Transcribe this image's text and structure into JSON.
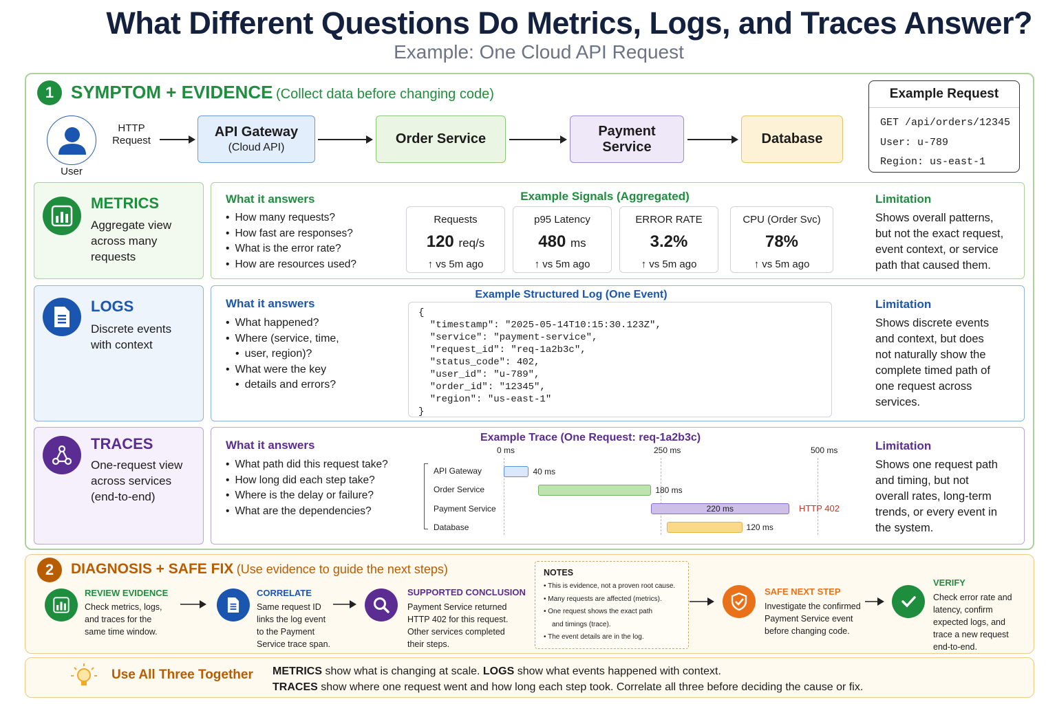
{
  "header": {
    "title": "What Different Questions Do Metrics, Logs, and Traces Answer?",
    "subtitle": "Example: One Cloud API Request"
  },
  "section1": {
    "number": "1",
    "title": "SYMPTOM + EVIDENCE",
    "subtitle": "(Collect data before changing code)"
  },
  "flow": {
    "user": "User",
    "http": "HTTP",
    "request": "Request",
    "gateway": "API Gateway",
    "gateway_sub": "(Cloud API)",
    "order": "Order Service",
    "payment": "Payment",
    "payment2": "Service",
    "database": "Database"
  },
  "example_request": {
    "title": "Example Request",
    "line1": "GET /api/orders/12345",
    "line2": "User: u-789",
    "line3": "Region: us-east-1"
  },
  "metrics": {
    "title": "METRICS",
    "desc": [
      "Aggregate view",
      "across many",
      "requests"
    ],
    "answers_title": "What it answers",
    "answers": [
      "How many requests?",
      "How fast are responses?",
      "What is the error rate?",
      "How are resources used?"
    ],
    "signals_title": "Example Signals (Aggregated)",
    "cards": [
      {
        "label": "Requests",
        "value": "120",
        "unit": "req/s",
        "delta": "↑ vs 5m ago"
      },
      {
        "label": "p95 Latency",
        "value": "480",
        "unit": "ms",
        "delta": "↑ vs 5m ago"
      },
      {
        "label": "ERROR RATE",
        "value": "3.2%",
        "unit": "",
        "delta": "↑ vs 5m ago"
      },
      {
        "label": "CPU (Order Svc)",
        "value": "78%",
        "unit": "",
        "delta": "↑ vs 5m ago"
      }
    ],
    "limitation_title": "Limitation",
    "limitation": [
      "Shows overall patterns,",
      "but not the exact request,",
      "event context, or service",
      "path that caused them."
    ],
    "icon": "bar-chart-icon"
  },
  "logs": {
    "title": "LOGS",
    "desc": [
      "Discrete events",
      "with context"
    ],
    "answers_title": "What it answers",
    "answers": [
      "What happened?",
      "Where (service, time,",
      "user, region)?",
      "What were the key",
      "details and errors?"
    ],
    "log_title": "Example Structured Log (One Event)",
    "log_lines": [
      "{",
      "  \"timestamp\": \"2025-05-14T10:15:30.123Z\",",
      "  \"service\": \"payment-service\",",
      "  \"request_id\": \"req-1a2b3c\",",
      "  \"status_code\": 402,",
      "  \"user_id\": \"u-789\",",
      "  \"order_id\": \"12345\",",
      "  \"region\": \"us-east-1\"",
      "}"
    ],
    "limitation_title": "Limitation",
    "limitation": [
      "Shows discrete events",
      "and context, but does",
      "not naturally show the",
      "complete timed path of",
      "one request across",
      "services."
    ],
    "icon": "document-icon"
  },
  "traces": {
    "title": "TRACES",
    "desc": [
      "One-request view",
      "across services",
      "(end-to-end)"
    ],
    "answers_title": "What it answers",
    "answers": [
      "What path did this request take?",
      "How long did each step take?",
      "Where is the delay or failure?",
      "What are the dependencies?"
    ],
    "trace_title": "Example Trace (One Request: req-1a2b3c)",
    "ticks": [
      "0 ms",
      "250 ms",
      "500 ms"
    ],
    "spans": [
      {
        "name": "API Gateway",
        "start": 0,
        "duration": 40,
        "label": "40 ms",
        "color": "#dbe8fb",
        "border": "#5b8fd6"
      },
      {
        "name": "Order Service",
        "start": 55,
        "duration": 180,
        "label": "180 ms",
        "color": "#bfe3b0",
        "border": "#6fb160"
      },
      {
        "name": "Payment Service",
        "start": 235,
        "duration": 220,
        "label": "220 ms",
        "color": "#cdbfe8",
        "border": "#8a6fc9",
        "status": "HTTP 402"
      },
      {
        "name": "Database",
        "start": 260,
        "duration": 120,
        "label": "120 ms",
        "color": "#fbd98a",
        "border": "#e3b34a"
      }
    ],
    "limitation_title": "Limitation",
    "limitation": [
      "Shows one request path",
      "and timing, but not",
      "overall rates, long-term",
      "trends, or every event in",
      "the system."
    ],
    "icon": "network-icon"
  },
  "section2": {
    "number": "2",
    "title": "DIAGNOSIS + SAFE FIX",
    "subtitle": "(Use evidence to guide the next steps)"
  },
  "steps": {
    "review": {
      "title": "REVIEW EVIDENCE",
      "lines": [
        "Check metrics, logs,",
        "and traces for the",
        "same time window."
      ]
    },
    "correlate": {
      "title": "CORRELATE",
      "lines": [
        "Same request ID",
        "links the log event",
        "to the Payment",
        "Service trace span."
      ]
    },
    "conclusion": {
      "title": "SUPPORTED CONCLUSION",
      "lines": [
        "Payment Service returned",
        "HTTP 402 for this request.",
        "Other services completed",
        "their steps."
      ]
    },
    "notes": {
      "title": "NOTES",
      "lines": [
        "This is evidence, not a proven root cause.",
        "Many requests are affected (metrics).",
        "One request shows the exact path",
        "and timings (trace).",
        "The event details are in the log."
      ]
    },
    "safe": {
      "title": "SAFE NEXT STEP",
      "lines": [
        "Investigate the confirmed",
        "Payment Service event",
        "before changing code."
      ]
    },
    "verify": {
      "title": "VERIFY",
      "lines": [
        "Check error rate and",
        "latency, confirm",
        "expected logs, and",
        "trace a new request",
        "end-to-end."
      ]
    }
  },
  "footer": {
    "title": "Use All Three Together",
    "line1_b1": "METRICS",
    "line1_t1": " show what is changing at scale. ",
    "line1_b2": "LOGS",
    "line1_t2": " show what events happened with context.",
    "line2_b1": "TRACES",
    "line2_t1": " show where one request went and how long each step took. Correlate all three before deciding the cause or fix."
  },
  "colors": {
    "green": "#1e8e3e",
    "blue": "#1a56b0",
    "purple": "#5b2c91",
    "orange": "#b85c00",
    "red": "#d93025"
  }
}
